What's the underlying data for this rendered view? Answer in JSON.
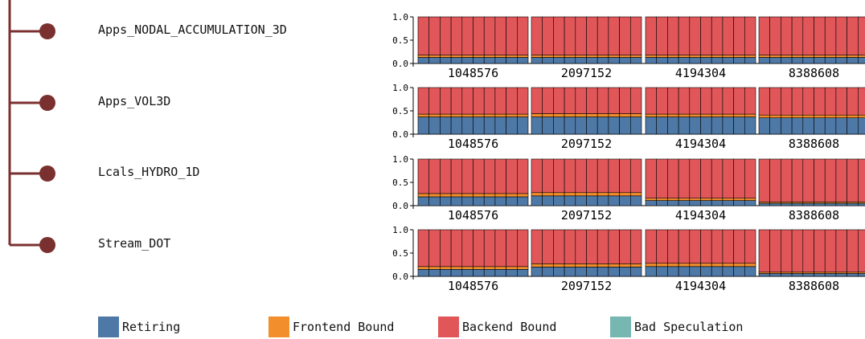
{
  "colors": {
    "retiring": "#4e79a7",
    "frontend": "#f28e2b",
    "backend": "#e15759",
    "bad_speculation": "#76b7b2",
    "tree": "#7b3030"
  },
  "legend": [
    {
      "key": "retiring",
      "label": "Retiring",
      "color": "#4e79a7"
    },
    {
      "key": "frontend",
      "label": "Frontend Bound",
      "color": "#f28e2b"
    },
    {
      "key": "backend",
      "label": "Backend Bound",
      "color": "#e15759"
    },
    {
      "key": "bad_speculation",
      "label": "Bad Speculation",
      "color": "#76b7b2"
    }
  ],
  "chart_data": {
    "type": "bar",
    "stacked": true,
    "ylim": [
      0,
      1
    ],
    "yticks": [
      "0.0",
      "0.5",
      "1.0"
    ],
    "groups": [
      "1048576",
      "2097152",
      "4194304",
      "8388608"
    ],
    "bars_per_group": 10,
    "stack_order": [
      "retiring",
      "bad_speculation",
      "frontend",
      "backend"
    ],
    "rows": [
      {
        "name": "Apps_NODAL_ACCUMULATION_3D",
        "groups": [
          {
            "label": "1048576",
            "retiring": 0.13,
            "frontend": 0.05,
            "bad_speculation": 0.0
          },
          {
            "label": "2097152",
            "retiring": 0.13,
            "frontend": 0.05,
            "bad_speculation": 0.0
          },
          {
            "label": "4194304",
            "retiring": 0.13,
            "frontend": 0.05,
            "bad_speculation": 0.0
          },
          {
            "label": "8388608",
            "retiring": 0.13,
            "frontend": 0.05,
            "bad_speculation": 0.0
          }
        ]
      },
      {
        "name": "Apps_VOL3D",
        "groups": [
          {
            "label": "1048576",
            "retiring": 0.37,
            "frontend": 0.06,
            "bad_speculation": 0.0
          },
          {
            "label": "2097152",
            "retiring": 0.37,
            "frontend": 0.07,
            "bad_speculation": 0.0
          },
          {
            "label": "4194304",
            "retiring": 0.37,
            "frontend": 0.06,
            "bad_speculation": 0.0
          },
          {
            "label": "8388608",
            "retiring": 0.35,
            "frontend": 0.06,
            "bad_speculation": 0.0
          }
        ]
      },
      {
        "name": "Lcals_HYDRO_1D",
        "groups": [
          {
            "label": "1048576",
            "retiring": 0.19,
            "frontend": 0.07,
            "bad_speculation": 0.0
          },
          {
            "label": "2097152",
            "retiring": 0.21,
            "frontend": 0.07,
            "bad_speculation": 0.0
          },
          {
            "label": "4194304",
            "retiring": 0.11,
            "frontend": 0.05,
            "bad_speculation": 0.0
          },
          {
            "label": "8388608",
            "retiring": 0.05,
            "frontend": 0.03,
            "bad_speculation": 0.0
          }
        ]
      },
      {
        "name": "Stream_DOT",
        "groups": [
          {
            "label": "1048576",
            "retiring": 0.15,
            "frontend": 0.06,
            "bad_speculation": 0.0
          },
          {
            "label": "2097152",
            "retiring": 0.2,
            "frontend": 0.07,
            "bad_speculation": 0.0
          },
          {
            "label": "4194304",
            "retiring": 0.21,
            "frontend": 0.07,
            "bad_speculation": 0.0
          },
          {
            "label": "8388608",
            "retiring": 0.06,
            "frontend": 0.03,
            "bad_speculation": 0.0
          }
        ]
      }
    ]
  }
}
